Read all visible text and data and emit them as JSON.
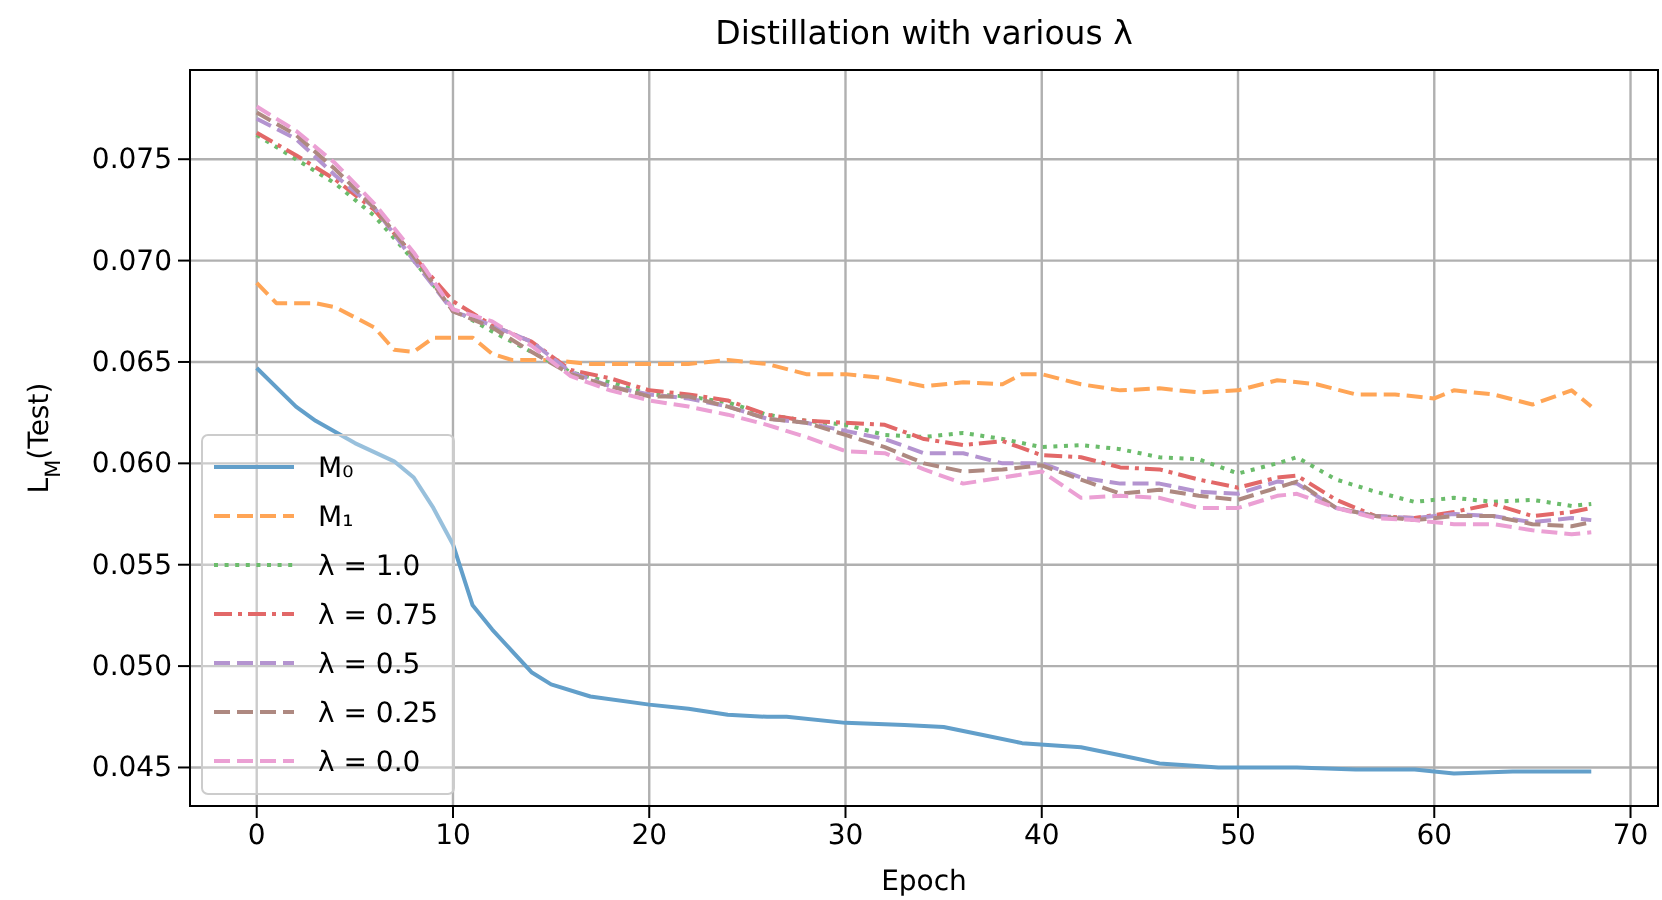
{
  "chart_data": {
    "type": "line",
    "title": "Distillation with various λ",
    "xlabel": "Epoch",
    "ylabel": "L$_{M}$(Test)",
    "xlim": [
      -3.4,
      71.4
    ],
    "xticks": [
      0,
      10,
      20,
      30,
      40,
      50,
      60,
      70
    ],
    "ylim": [
      0.0431,
      0.0794
    ],
    "yticks": [
      {
        "value": 0.045,
        "label": "0.045"
      },
      {
        "value": 0.05,
        "label": "0.050"
      },
      {
        "value": 0.055,
        "label": "0.055"
      },
      {
        "value": 0.06,
        "label": "0.060"
      },
      {
        "value": 0.065,
        "label": "0.065"
      },
      {
        "value": 0.07,
        "label": "0.070"
      },
      {
        "value": 0.075,
        "label": "0.075"
      }
    ],
    "grid": true,
    "legend": "bottom left",
    "marker": "none",
    "series": [
      {
        "name": "M₀",
        "color": "#629fca",
        "line_style": "solid",
        "x": [
          0,
          2,
          3,
          5,
          7,
          8,
          9,
          10,
          11,
          12,
          14,
          15,
          17,
          20,
          22,
          24,
          26,
          27,
          30,
          33,
          35,
          37,
          39,
          42,
          44,
          46,
          49,
          53,
          56,
          59,
          61,
          64,
          66,
          68
        ],
        "values": [
          0.0647,
          0.0628,
          0.0621,
          0.061,
          0.0601,
          0.0593,
          0.0578,
          0.056,
          0.053,
          0.0518,
          0.0497,
          0.0491,
          0.0485,
          0.0481,
          0.0479,
          0.0476,
          0.0475,
          0.0475,
          0.0472,
          0.0471,
          0.047,
          0.0466,
          0.0462,
          0.046,
          0.0456,
          0.0452,
          0.045,
          0.045,
          0.0449,
          0.0449,
          0.0447,
          0.0448,
          0.0448,
          0.0448
        ]
      },
      {
        "name": "M₁",
        "color": "#ffa556",
        "line_style": "dashed",
        "x": [
          0,
          1,
          3,
          4,
          6,
          7,
          8,
          9,
          11,
          12,
          13,
          15,
          17,
          20,
          22,
          24,
          26,
          28,
          30,
          32,
          34,
          36,
          38,
          39,
          40,
          42,
          44,
          46,
          48,
          50,
          52,
          54,
          56,
          58,
          60,
          61,
          63,
          65,
          67,
          68
        ],
        "values": [
          0.0689,
          0.0679,
          0.0679,
          0.0677,
          0.0667,
          0.0656,
          0.0655,
          0.0662,
          0.0662,
          0.0654,
          0.0651,
          0.0651,
          0.0649,
          0.0649,
          0.0649,
          0.0651,
          0.0649,
          0.0644,
          0.0644,
          0.0642,
          0.0638,
          0.064,
          0.0639,
          0.0644,
          0.0644,
          0.0639,
          0.0636,
          0.0637,
          0.0635,
          0.0636,
          0.0641,
          0.0639,
          0.0634,
          0.0634,
          0.0632,
          0.0636,
          0.0634,
          0.0629,
          0.0636,
          0.0628
        ]
      },
      {
        "name": "λ = 1.0",
        "color": "#6bbc6b",
        "line_style": "dotted",
        "x": [
          0,
          2,
          4,
          6,
          8,
          10,
          12,
          14,
          16,
          18,
          20,
          22,
          24,
          26,
          28,
          30,
          32,
          34,
          36,
          38,
          40,
          42,
          44,
          46,
          48,
          50,
          52,
          53,
          55,
          57,
          59,
          61,
          63,
          65,
          67,
          68
        ],
        "values": [
          0.0762,
          0.075,
          0.0738,
          0.0722,
          0.07,
          0.0676,
          0.0665,
          0.0655,
          0.0645,
          0.064,
          0.0634,
          0.0633,
          0.063,
          0.0624,
          0.0621,
          0.0619,
          0.0614,
          0.0613,
          0.0615,
          0.0612,
          0.0608,
          0.0609,
          0.0607,
          0.0603,
          0.0602,
          0.0595,
          0.06,
          0.0603,
          0.0592,
          0.0586,
          0.0581,
          0.0583,
          0.0581,
          0.0582,
          0.0579,
          0.058
        ]
      },
      {
        "name": "λ = 0.75",
        "color": "#e26868",
        "line_style": "dashdot",
        "x": [
          0,
          2,
          4,
          6,
          8,
          10,
          12,
          14,
          16,
          18,
          20,
          22,
          24,
          26,
          28,
          30,
          32,
          34,
          36,
          38,
          40,
          42,
          44,
          46,
          48,
          50,
          52,
          53,
          55,
          57,
          59,
          61,
          63,
          65,
          67,
          68
        ],
        "values": [
          0.0763,
          0.0752,
          0.074,
          0.0725,
          0.0702,
          0.068,
          0.0668,
          0.066,
          0.0646,
          0.0642,
          0.0636,
          0.0634,
          0.0631,
          0.0624,
          0.0621,
          0.062,
          0.0619,
          0.0612,
          0.0609,
          0.0611,
          0.0604,
          0.0603,
          0.0598,
          0.0597,
          0.0592,
          0.0588,
          0.0593,
          0.0594,
          0.0582,
          0.0574,
          0.0573,
          0.0576,
          0.058,
          0.0574,
          0.0576,
          0.0578
        ]
      },
      {
        "name": "λ = 0.5",
        "color": "#b494d0",
        "line_style": "dashed",
        "x": [
          0,
          2,
          4,
          6,
          8,
          10,
          12,
          14,
          16,
          18,
          20,
          22,
          24,
          26,
          28,
          30,
          32,
          34,
          36,
          38,
          40,
          42,
          44,
          46,
          48,
          50,
          52,
          53,
          55,
          57,
          59,
          61,
          63,
          65,
          67,
          68
        ],
        "values": [
          0.077,
          0.076,
          0.0742,
          0.0726,
          0.07,
          0.0675,
          0.0668,
          0.066,
          0.0645,
          0.0638,
          0.0634,
          0.0632,
          0.0628,
          0.0622,
          0.062,
          0.0616,
          0.0612,
          0.0605,
          0.0605,
          0.06,
          0.06,
          0.0593,
          0.059,
          0.059,
          0.0586,
          0.0585,
          0.0591,
          0.059,
          0.0578,
          0.0574,
          0.0573,
          0.0575,
          0.0574,
          0.0571,
          0.0573,
          0.0572
        ]
      },
      {
        "name": "λ = 0.25",
        "color": "#ae8981",
        "line_style": "dashed",
        "x": [
          0,
          2,
          4,
          6,
          8,
          10,
          12,
          14,
          16,
          18,
          20,
          22,
          24,
          26,
          28,
          30,
          32,
          34,
          36,
          38,
          40,
          42,
          44,
          46,
          48,
          50,
          52,
          53,
          55,
          57,
          59,
          61,
          63,
          65,
          67,
          68
        ],
        "values": [
          0.0773,
          0.0762,
          0.0745,
          0.0726,
          0.0702,
          0.0675,
          0.0667,
          0.0655,
          0.0644,
          0.0638,
          0.0633,
          0.0633,
          0.0628,
          0.0622,
          0.062,
          0.0614,
          0.0608,
          0.06,
          0.0596,
          0.0597,
          0.0599,
          0.0592,
          0.0585,
          0.0587,
          0.0584,
          0.0582,
          0.0588,
          0.0591,
          0.0578,
          0.0574,
          0.0572,
          0.0574,
          0.0574,
          0.057,
          0.0569,
          0.0571
        ]
      },
      {
        "name": "λ = 0.0",
        "color": "#eba0d4",
        "line_style": "dashed",
        "x": [
          0,
          2,
          4,
          6,
          8,
          10,
          12,
          14,
          16,
          18,
          20,
          22,
          24,
          26,
          28,
          30,
          32,
          34,
          36,
          38,
          40,
          42,
          44,
          46,
          48,
          50,
          52,
          53,
          55,
          57,
          59,
          61,
          63,
          65,
          67,
          68
        ],
        "values": [
          0.0776,
          0.0764,
          0.0748,
          0.0728,
          0.0704,
          0.0676,
          0.067,
          0.0658,
          0.0643,
          0.0636,
          0.0631,
          0.0628,
          0.0624,
          0.0619,
          0.0613,
          0.0606,
          0.0605,
          0.0597,
          0.059,
          0.0593,
          0.0596,
          0.0583,
          0.0584,
          0.0583,
          0.0578,
          0.0578,
          0.0584,
          0.0585,
          0.0578,
          0.0573,
          0.0572,
          0.057,
          0.057,
          0.0567,
          0.0565,
          0.0566
        ]
      }
    ]
  }
}
